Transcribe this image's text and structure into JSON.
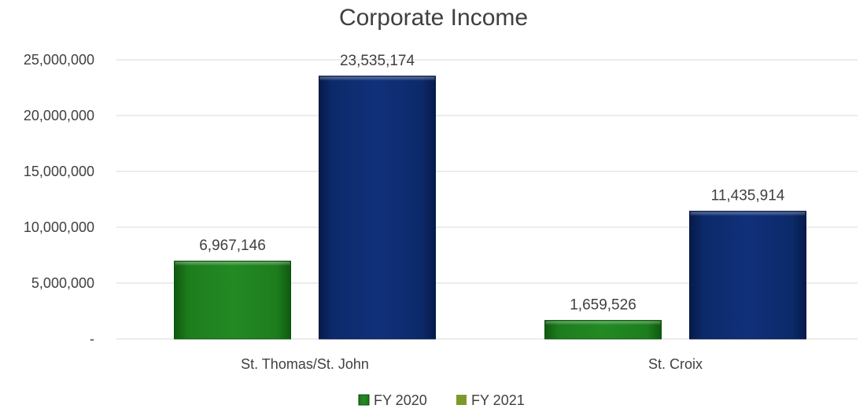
{
  "chart_data": {
    "type": "bar",
    "title": "Corporate Income",
    "xlabel": "",
    "ylabel": "",
    "ylim": [
      0,
      25000000
    ],
    "yticks": [
      {
        "value": 0,
        "label": "-"
      },
      {
        "value": 5000000,
        "label": "5,000,000"
      },
      {
        "value": 10000000,
        "label": "10,000,000"
      },
      {
        "value": 15000000,
        "label": "15,000,000"
      },
      {
        "value": 20000000,
        "label": "20,000,000"
      },
      {
        "value": 25000000,
        "label": "25,000,000"
      }
    ],
    "grid": true,
    "legend_position": "bottom-center",
    "categories": [
      "St. Thomas/St. John",
      "St. Croix"
    ],
    "series": [
      {
        "name": "FY 2020",
        "color": "#1f7a1f",
        "values": [
          6967146,
          1659526
        ],
        "labels": [
          "6,967,146",
          "1,659,526"
        ]
      },
      {
        "name": "FY 2021",
        "color": "#0d2a6b",
        "legend_color": "#7a9a2a",
        "values": [
          23535174,
          11435914
        ],
        "labels": [
          "23,535,174",
          "11,435,914"
        ]
      }
    ]
  }
}
